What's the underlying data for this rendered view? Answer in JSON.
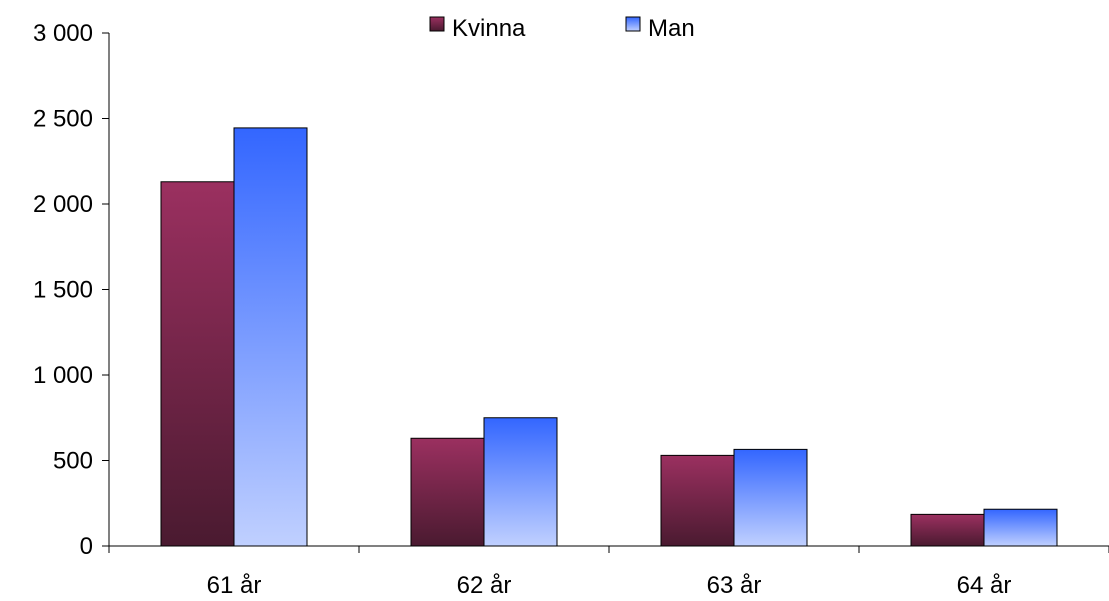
{
  "chart_data": {
    "type": "bar",
    "categories": [
      "61 år",
      "62 år",
      "63 år",
      "64 år"
    ],
    "series": [
      {
        "name": "Kvinna",
        "values": [
          2130,
          630,
          530,
          185
        ],
        "color": "#9b3060",
        "color_dark": "#4a1a30"
      },
      {
        "name": "Man",
        "values": [
          2445,
          750,
          565,
          215
        ],
        "color": "#3366ff",
        "color_light": "#c0d0ff"
      }
    ],
    "y_ticks": [
      0,
      500,
      1000,
      1500,
      2000,
      2500,
      3000
    ],
    "y_tick_labels": [
      "0",
      "500",
      "1 000",
      "1 500",
      "2 000",
      "2 500",
      "3 000"
    ],
    "ylim": [
      0,
      3000
    ],
    "grid": false,
    "legend_position": "top-center"
  }
}
